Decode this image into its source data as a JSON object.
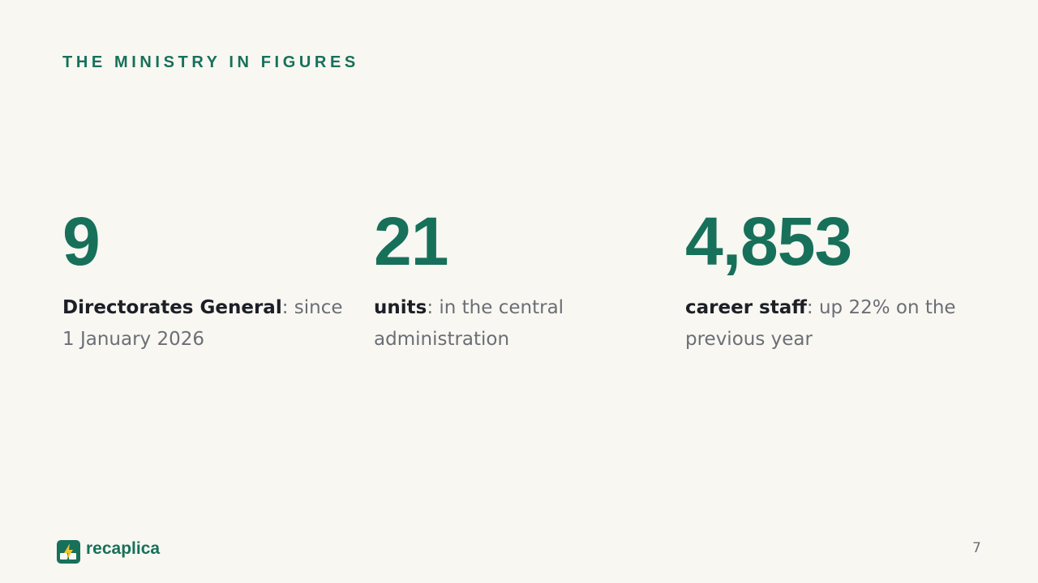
{
  "header": {
    "title": "THE MINISTRY IN FIGURES"
  },
  "stats": [
    {
      "value": "9",
      "label": "Directorates General",
      "description": ": since 1 January 2026"
    },
    {
      "value": "21",
      "label": "units",
      "description": ": in the central administration"
    },
    {
      "value": "4,853",
      "label": "career staff",
      "description": ": up 22% on the previous year"
    }
  ],
  "footer": {
    "brand": "recaplica",
    "page_number": "7"
  }
}
